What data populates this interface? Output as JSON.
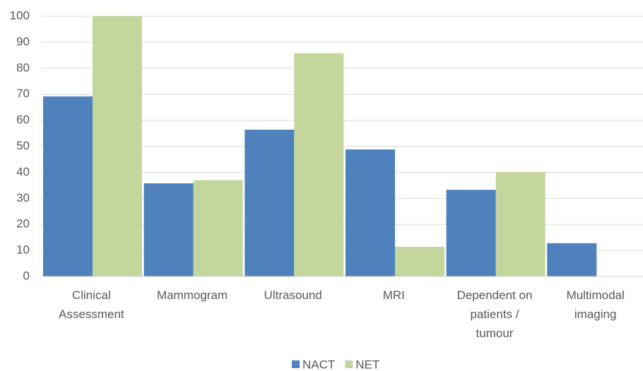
{
  "chart_data": {
    "type": "bar",
    "categories": [
      "Clinical Assessment",
      "Mammogram",
      "Ultrasound",
      "MRI",
      "Dependent on patients / tumour",
      "Multimodal imaging"
    ],
    "series": [
      {
        "name": "NACT",
        "color": "#4f81bd",
        "values": [
          69.2,
          35.8,
          56.4,
          48.8,
          33.3,
          12.8
        ]
      },
      {
        "name": "NET",
        "color": "#c3d69b",
        "values": [
          100,
          37,
          85.8,
          11.4,
          40.1,
          null
        ]
      }
    ],
    "ylim": [
      0,
      100
    ],
    "yticks": [
      0,
      10,
      20,
      30,
      40,
      50,
      60,
      70,
      80,
      90,
      100
    ],
    "grid": true,
    "legend": "bottom"
  }
}
